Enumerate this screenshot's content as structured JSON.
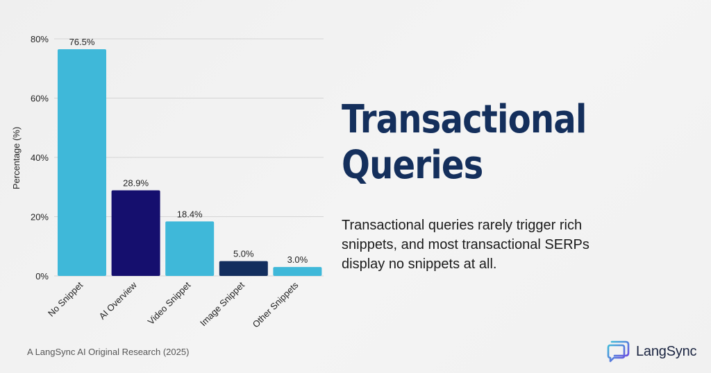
{
  "chart_data": {
    "type": "bar",
    "categories": [
      "No Snippet",
      "AI Overview",
      "Video Snippet",
      "Image Snippet",
      "Other Snippets"
    ],
    "values": [
      76.5,
      28.9,
      18.4,
      5.0,
      3.0
    ],
    "value_labels": [
      "76.5%",
      "28.9%",
      "18.4%",
      "5.0%",
      "3.0%"
    ],
    "bar_colors": [
      "#3fb8d9",
      "#150f6e",
      "#3fb8d9",
      "#132e5e",
      "#3fb8d9"
    ],
    "ylabel": "Percentage (%)",
    "xlabel": "",
    "ylim": [
      0,
      80
    ],
    "yticks": [
      0,
      20,
      40,
      60,
      80
    ],
    "ytick_labels": [
      "0%",
      "20%",
      "40%",
      "60%",
      "80%"
    ],
    "grid": true,
    "legend": "none"
  },
  "headline": {
    "line1": "Transactional",
    "line2": "Queries"
  },
  "description": "Transactional queries rarely trigger rich snippets, and most transactional SERPs display no snippets at all.",
  "footer": {
    "credit": "A LangSync AI Original Research (2025)"
  },
  "brand": {
    "name": "LangSync",
    "logo_icon": "langsync-logo-icon",
    "colors": [
      "#3fb8d9",
      "#6a4ee0"
    ]
  }
}
